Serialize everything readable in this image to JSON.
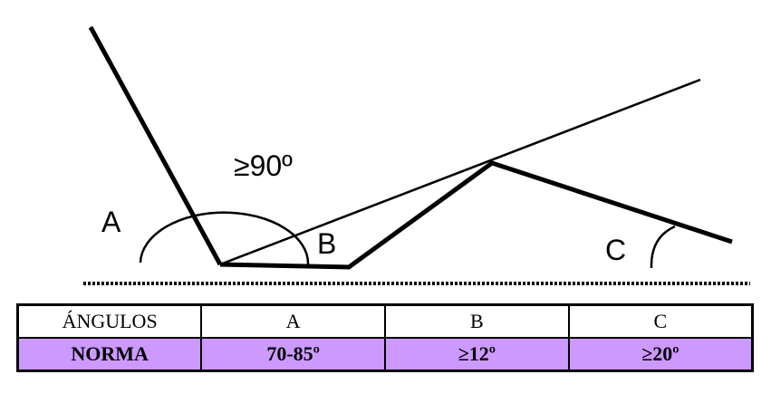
{
  "diagram": {
    "labels": {
      "a": "A",
      "b": "B",
      "c": "C",
      "angle": "≥90º"
    }
  },
  "table": {
    "header": [
      "ÁNGULOS",
      "A",
      "B",
      "C"
    ],
    "row": [
      "NORMA",
      "70-85º",
      "≥12º",
      "≥20º"
    ],
    "highlight_color": "#cc99ff"
  }
}
